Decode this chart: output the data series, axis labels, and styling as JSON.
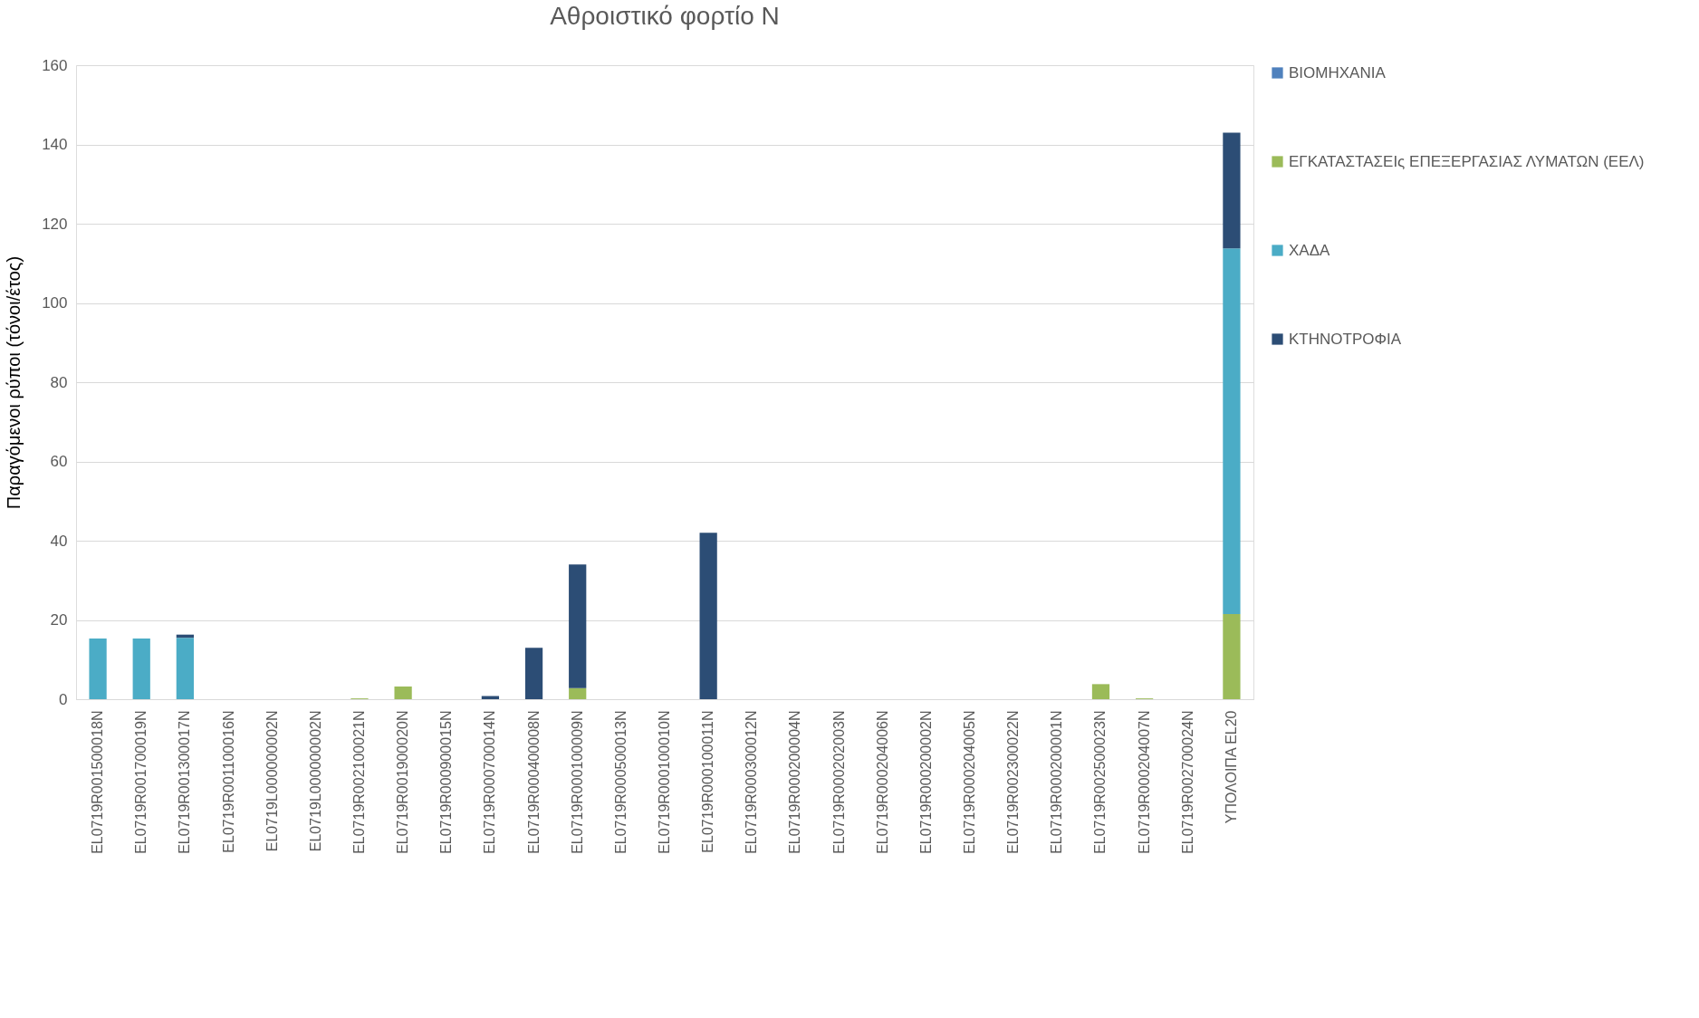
{
  "chart_data": {
    "type": "bar",
    "stacked": true,
    "title": "Αθροιστικό φορτίο Ν",
    "ylabel": "Παραγόμενοι ρύποι (τόνοι/έτος)",
    "categories": [
      "EL0719R001500018N",
      "EL0719R001700019N",
      "EL0719R001300017N",
      "EL0719R001100016N",
      "EL0719L000000002N",
      "EL0719L000000002N",
      "EL0719R002100021N",
      "EL0719R001900020N",
      "EL0719R000900015N",
      "EL0719R000700014N",
      "EL0719R000400008N",
      "EL0719R000100009N",
      "EL0719R000500013N",
      "EL0719R000100010N",
      "EL0719R000100011N",
      "EL0719R000300012N",
      "EL0719R000200004N",
      "EL0719R000202003N",
      "EL0719R000204006N",
      "EL0719R000200002N",
      "EL0719R000204005N",
      "EL0719R002300022N",
      "EL0719R000200001N",
      "EL0719R002500023N",
      "EL0719R000204007N",
      "EL0719R002700024N",
      "ΥΠΟΛΟΙΠΑ EL20"
    ],
    "series": [
      {
        "name": "ΒΙΟΜΗΧΑΝΙΑ",
        "color": "#4f81bd",
        "values": [
          0,
          0,
          0,
          0,
          0,
          0,
          0,
          0,
          0,
          0,
          0,
          0,
          0,
          0,
          0,
          0,
          0,
          0,
          0,
          0,
          0,
          0,
          0,
          0,
          0,
          0,
          0
        ]
      },
      {
        "name": "ΕΓΚΑΤΑΣΤΑΣΕΙς ΕΠΕΞΕΡΓΑΣΙΑΣ ΛΥΜΑΤΩΝ (ΕΕΛ)",
        "color": "#9bbb59",
        "values": [
          0,
          0,
          0,
          0,
          0,
          0,
          0.2,
          3.2,
          0,
          0,
          0,
          2.8,
          0,
          0,
          0,
          0,
          0,
          0,
          0,
          0,
          0,
          0,
          0,
          3.8,
          0.2,
          0,
          21.5
        ]
      },
      {
        "name": "ΧΑΔΑ",
        "color": "#4bacc6",
        "values": [
          15.3,
          15.3,
          15.5,
          0,
          0,
          0,
          0,
          0,
          0,
          0,
          0,
          0,
          0,
          0,
          0,
          0,
          0,
          0,
          0,
          0,
          0,
          0,
          0,
          0,
          0,
          0,
          92.3
        ]
      },
      {
        "name": "ΚΤΗΝΟΤΡΟΦΙΑ",
        "color": "#2c4d75",
        "values": [
          0,
          0,
          0.8,
          0,
          0,
          0,
          0,
          0,
          0,
          0.8,
          13,
          31.2,
          0,
          0,
          42,
          0,
          0,
          0,
          0,
          0,
          0,
          0,
          0,
          0,
          0,
          0,
          29.2
        ]
      }
    ],
    "ylim": [
      0,
      160
    ],
    "yticks": [
      0,
      20,
      40,
      60,
      80,
      100,
      120,
      140,
      160
    ],
    "grid": "y",
    "legend": "right"
  }
}
